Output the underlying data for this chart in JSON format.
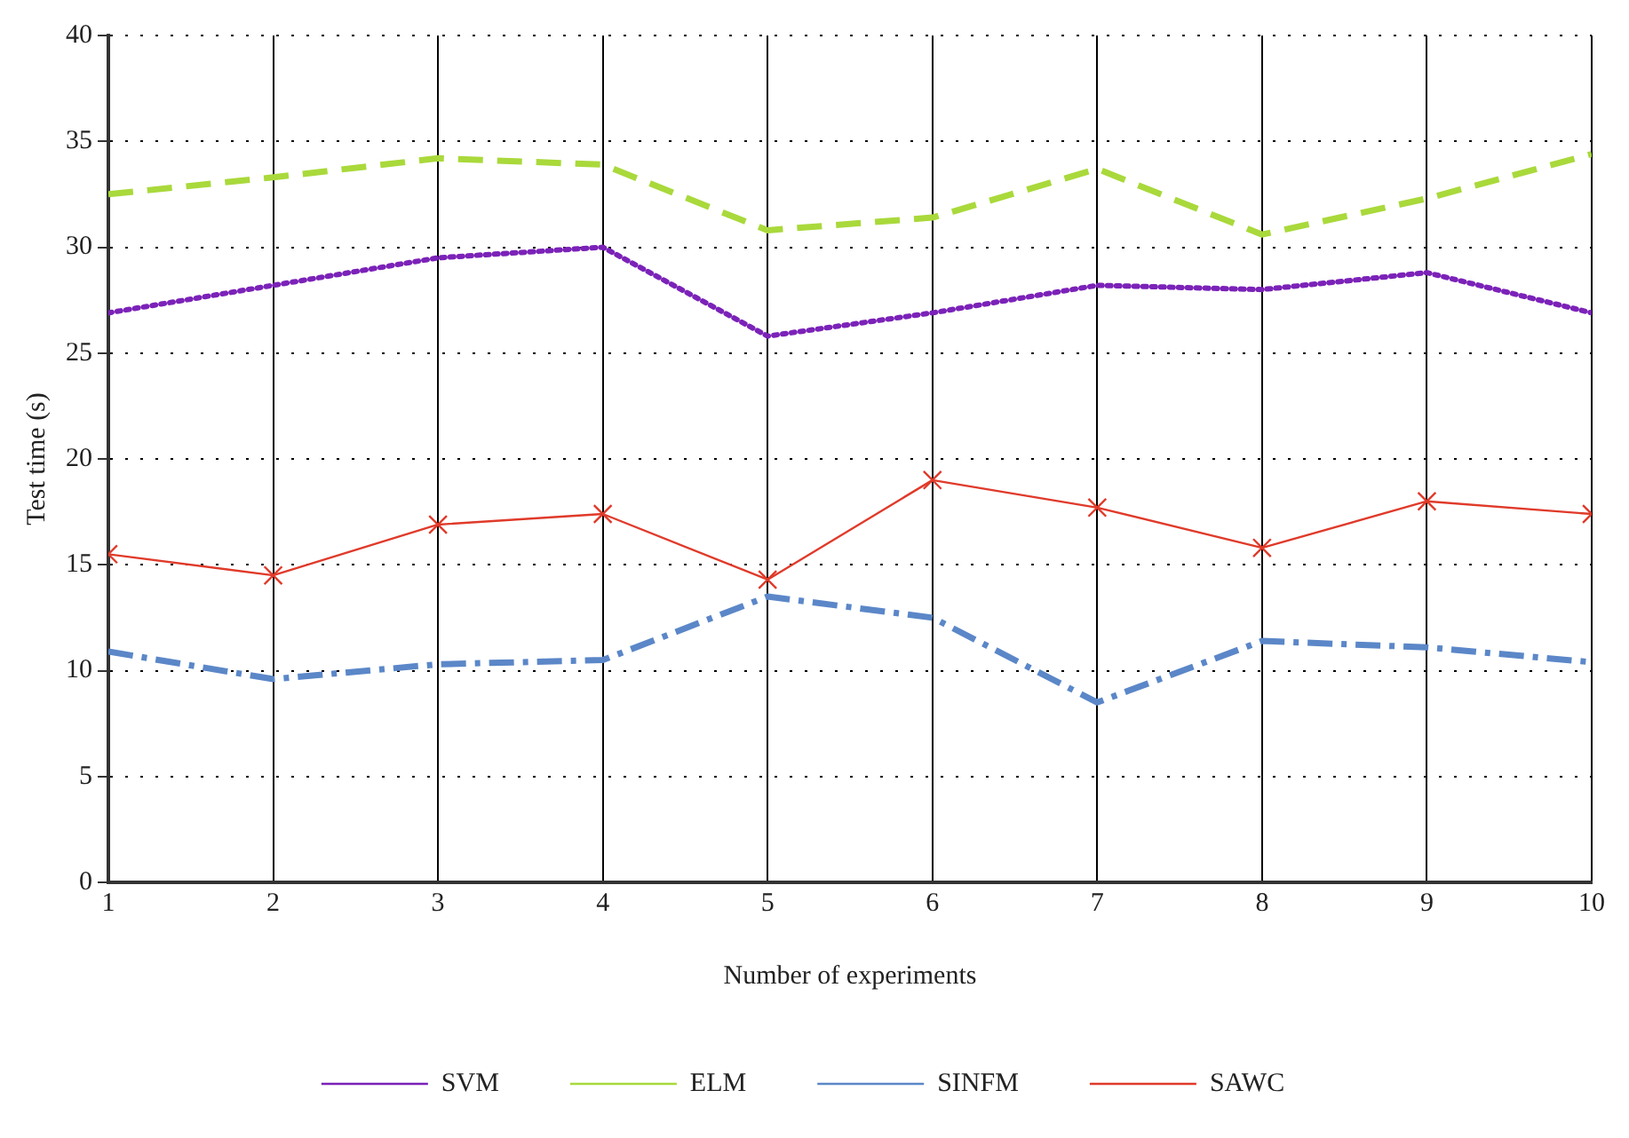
{
  "chart_data": {
    "type": "line",
    "xlabel": "Number of experiments",
    "ylabel": "Test time (s)",
    "x": [
      1,
      2,
      3,
      4,
      5,
      6,
      7,
      8,
      9,
      10
    ],
    "xlim": [
      1,
      10
    ],
    "xticks": [
      1,
      2,
      3,
      4,
      5,
      6,
      7,
      8,
      9,
      10
    ],
    "ylim": [
      0,
      40
    ],
    "yticks": [
      0,
      5,
      10,
      15,
      20,
      25,
      30,
      35,
      40
    ],
    "grid": true,
    "legend": "bottom",
    "series": [
      {
        "name": "SVM",
        "color": "#7b22b8",
        "line_style": "dotted",
        "marker": "none",
        "values": [
          26.9,
          28.2,
          29.5,
          30.0,
          25.8,
          26.9,
          28.2,
          28.0,
          28.8,
          26.9
        ]
      },
      {
        "name": "ELM",
        "color": "#a9d93b",
        "line_style": "dashed",
        "marker": "none",
        "values": [
          32.5,
          33.3,
          34.2,
          33.9,
          30.8,
          31.4,
          33.7,
          30.6,
          32.3,
          34.4
        ]
      },
      {
        "name": "SINFM",
        "color": "#5b87c8",
        "line_style": "dashdot",
        "marker": "none",
        "values": [
          10.9,
          9.6,
          10.3,
          10.5,
          13.5,
          12.5,
          8.5,
          11.4,
          11.1,
          10.4
        ]
      },
      {
        "name": "SAWC",
        "color": "#e03a2a",
        "line_style": "solid",
        "marker": "cross",
        "values": [
          15.5,
          14.5,
          16.9,
          17.4,
          14.3,
          19.0,
          17.7,
          15.8,
          18.0,
          17.4
        ]
      }
    ]
  }
}
